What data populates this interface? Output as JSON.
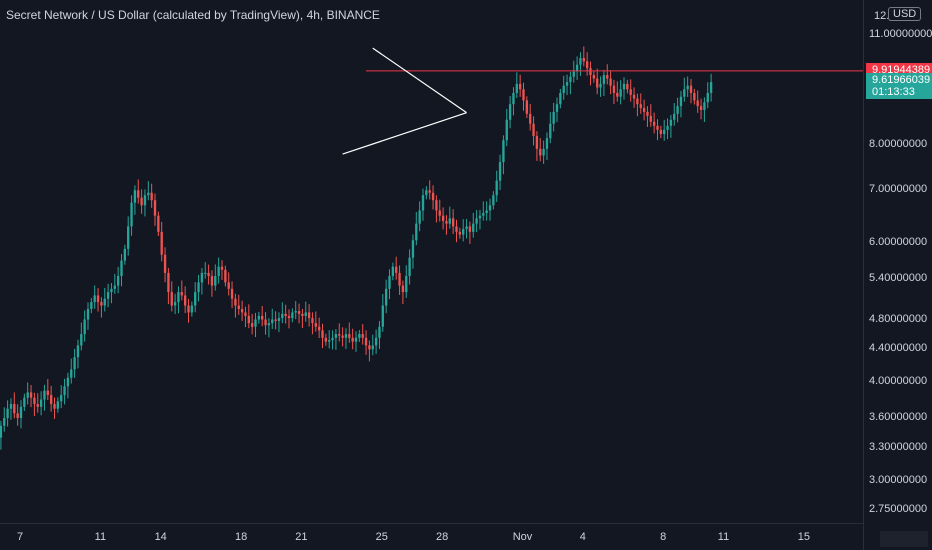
{
  "title": "Secret Network / US Dollar (calculated by TradingView), 4h, BINANCE",
  "currency": "USD",
  "y_top_partial": "12.0",
  "colors": {
    "background": "#131722",
    "up": "#26a69a",
    "down": "#ef5350",
    "resistance": "#f23645",
    "trendline": "#ffffff",
    "axis_text": "#d1d4dc"
  },
  "price_axis_labels": [
    "11.00000000",
    "8.00000000",
    "7.00000000",
    "6.00000000",
    "5.40000000",
    "4.80000000",
    "4.40000000",
    "4.00000000",
    "3.60000000",
    "3.30000000",
    "3.00000000",
    "2.75000000"
  ],
  "resistance_tag": {
    "value": "9.91944389",
    "color": "#f23645"
  },
  "last_price_tag": {
    "value": "9.61966039",
    "countdown": "01:13:33",
    "color": "#26a69a"
  },
  "chart_data": {
    "type": "candlestick",
    "timeframe": "4h",
    "y_scale": "log",
    "ylim": [
      2.65,
      12.2
    ],
    "x_ticks": [
      "7",
      "11",
      "14",
      "18",
      "21",
      "25",
      "28",
      "Nov",
      "4",
      "8",
      "11",
      "15"
    ],
    "x_tick_days": [
      0,
      4,
      7,
      11,
      14,
      18,
      21,
      25,
      28,
      32,
      35,
      39
    ],
    "closes": [
      3.55,
      3.45,
      3.3,
      3.18,
      3.05,
      3.1,
      3.25,
      3.35,
      3.4,
      3.5,
      3.45,
      3.35,
      3.4,
      3.52,
      3.6,
      3.7,
      3.75,
      3.65,
      3.6,
      3.72,
      3.82,
      3.88,
      3.82,
      3.75,
      3.72,
      3.8,
      3.9,
      3.85,
      3.75,
      3.7,
      3.78,
      3.85,
      3.95,
      4.05,
      4.15,
      4.3,
      4.45,
      4.6,
      4.8,
      4.95,
      5.05,
      5.15,
      5.05,
      5.0,
      5.1,
      5.2,
      5.25,
      5.3,
      5.45,
      5.7,
      5.9,
      6.3,
      6.75,
      7.0,
      6.85,
      6.7,
      6.9,
      6.95,
      6.8,
      6.5,
      6.2,
      5.8,
      5.5,
      5.2,
      5.0,
      5.05,
      5.2,
      5.15,
      5.0,
      4.9,
      5.0,
      5.2,
      5.35,
      5.5,
      5.5,
      5.45,
      5.3,
      5.45,
      5.6,
      5.55,
      5.35,
      5.25,
      5.1,
      5.0,
      4.95,
      4.9,
      4.85,
      4.75,
      4.7,
      4.8,
      4.85,
      4.8,
      4.72,
      4.75,
      4.8,
      4.78,
      4.82,
      4.88,
      4.85,
      4.82,
      4.9,
      4.92,
      4.88,
      4.85,
      4.9,
      4.82,
      4.75,
      4.7,
      4.65,
      4.55,
      4.5,
      4.52,
      4.55,
      4.6,
      4.58,
      4.55,
      4.6,
      4.55,
      4.5,
      4.55,
      4.6,
      4.55,
      4.45,
      4.4,
      4.45,
      4.55,
      4.7,
      5.0,
      5.25,
      5.45,
      5.6,
      5.5,
      5.3,
      5.2,
      5.45,
      5.75,
      6.05,
      6.35,
      6.6,
      6.9,
      7.0,
      6.95,
      6.8,
      6.6,
      6.5,
      6.4,
      6.35,
      6.45,
      6.3,
      6.2,
      6.15,
      6.25,
      6.3,
      6.2,
      6.35,
      6.45,
      6.5,
      6.55,
      6.6,
      6.7,
      6.9,
      7.2,
      7.6,
      8.1,
      8.6,
      9.0,
      9.3,
      9.55,
      9.4,
      9.1,
      8.75,
      8.5,
      8.2,
      7.9,
      7.75,
      7.9,
      8.15,
      8.5,
      8.8,
      9.0,
      9.3,
      9.5,
      9.6,
      9.75,
      9.9,
      10.1,
      10.3,
      10.2,
      10.0,
      9.8,
      9.7,
      9.45,
      9.55,
      9.8,
      9.7,
      9.5,
      9.3,
      9.2,
      9.4,
      9.55,
      9.4,
      9.25,
      9.15,
      9.0,
      8.9,
      8.8,
      8.7,
      8.55,
      8.45,
      8.35,
      8.25,
      8.35,
      8.45,
      8.6,
      8.75,
      8.95,
      9.2,
      9.4,
      9.5,
      9.3,
      9.1,
      8.95,
      8.85,
      9.05,
      9.3,
      9.6
    ]
  },
  "annotations": {
    "resistance_value": 9.91944389,
    "triangle_upper": [
      [
        124,
        10.6
      ],
      [
        152,
        8.78
      ]
    ],
    "triangle_lower": [
      [
        115,
        7.78
      ],
      [
        152,
        8.78
      ]
    ]
  }
}
